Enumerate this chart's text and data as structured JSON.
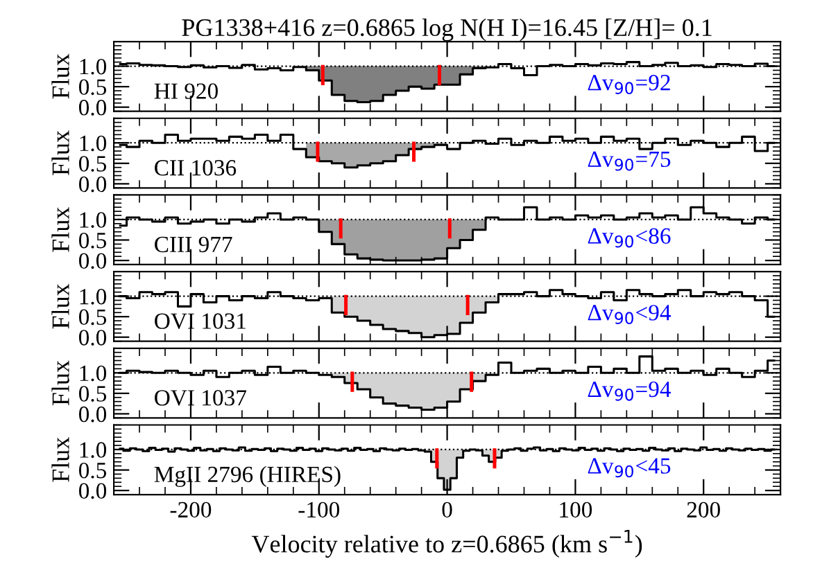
{
  "chart_data": [
    {
      "type": "step",
      "title": "PG1338+416 z=0.6865 log N(H I)=16.45 [Z/H]= 0.1",
      "ylabel": "Flux",
      "xlim": [
        -260,
        260
      ],
      "xticks": [
        -200,
        -100,
        0,
        100,
        200
      ],
      "ylim": [
        -0.1,
        1.6
      ],
      "yticks": [
        {
          "value": 0,
          "label": "0.0"
        },
        {
          "value": 0.5,
          "label": "0.5"
        },
        {
          "value": 1,
          "label": "1.0"
        }
      ],
      "tick_labels": "y",
      "grid": false,
      "series": [
        {
          "color": "#000000",
          "x": [
            -255,
            -245,
            -235,
            -225,
            -215,
            -205,
            -195,
            -185,
            -175,
            -165,
            -155,
            -145,
            -135,
            -125,
            -115,
            -105,
            -95,
            -85,
            -75,
            -65,
            -55,
            -45,
            -35,
            -25,
            -15,
            -5,
            5,
            15,
            25,
            35,
            45,
            55,
            65,
            75,
            85,
            95,
            105,
            115,
            125,
            135,
            145,
            155,
            165,
            175,
            185,
            195,
            205,
            215,
            225,
            235,
            245,
            255
          ],
          "values": [
            1.05,
            1.07,
            1.03,
            1.02,
            1.0,
            0.98,
            1.02,
            0.97,
            1.0,
            0.96,
            1.03,
            0.92,
            0.95,
            0.9,
            0.98,
            0.9,
            0.65,
            0.3,
            0.15,
            0.12,
            0.15,
            0.3,
            0.4,
            0.5,
            0.45,
            0.55,
            0.55,
            0.8,
            0.95,
            0.97,
            1.05,
            0.95,
            0.78,
            1.0,
            1.03,
            1.0,
            1.05,
            1.02,
            1.07,
            1.05,
            1.1,
            1.0,
            1.03,
            1.08,
            1.0,
            1.02,
            0.98,
            1.05,
            1.03,
            1.0,
            1.06,
            1.0
          ]
        },
        {
          "type": "area",
          "color": "#808080",
          "x": [
            -110,
            -110,
            -100,
            -100,
            -90,
            -90,
            -80,
            -80,
            -70,
            -70,
            -60,
            -60,
            -50,
            -50,
            -40,
            -40,
            -30,
            -30,
            -20,
            -20,
            -10,
            -10,
            0,
            0,
            10,
            10,
            20,
            20,
            30,
            30
          ],
          "values": [
            1,
            0.9,
            0.9,
            0.65,
            0.65,
            0.3,
            0.3,
            0.15,
            0.15,
            0.12,
            0.12,
            0.15,
            0.15,
            0.3,
            0.3,
            0.4,
            0.4,
            0.5,
            0.5,
            0.45,
            0.45,
            0.55,
            0.55,
            0.55,
            0.55,
            0.8,
            0.8,
            0.95,
            0.95,
            1
          ]
        }
      ],
      "ref_lines": [
        {
          "axis": "y",
          "value": 1,
          "line_style": "dotted",
          "color": "#000000"
        },
        {
          "axis": "x",
          "value": -97,
          "color": "#ff0000"
        },
        {
          "axis": "x",
          "value": -6,
          "color": "#ff0000"
        }
      ],
      "annotations": [
        "HI 920",
        "Δv$_{90}$=92"
      ]
    },
    {
      "type": "step",
      "ylabel": "Flux",
      "xlim": [
        -260,
        260
      ],
      "xticks": [
        -200,
        -100,
        0,
        100,
        200
      ],
      "ylim": [
        -0.1,
        1.6
      ],
      "yticks": [
        {
          "value": 0,
          "label": "0.0"
        },
        {
          "value": 0.5,
          "label": "0.5"
        },
        {
          "value": 1,
          "label": "1.0"
        }
      ],
      "tick_labels": "y",
      "grid": false,
      "series": [
        {
          "color": "#000000",
          "x": [
            -255,
            -245,
            -235,
            -225,
            -215,
            -205,
            -195,
            -185,
            -175,
            -165,
            -155,
            -145,
            -135,
            -125,
            -115,
            -105,
            -95,
            -85,
            -75,
            -65,
            -55,
            -45,
            -35,
            -25,
            -15,
            -5,
            5,
            15,
            25,
            35,
            45,
            55,
            65,
            75,
            85,
            95,
            105,
            115,
            125,
            135,
            145,
            155,
            165,
            175,
            185,
            195,
            205,
            215,
            225,
            235,
            245,
            255
          ],
          "values": [
            0.95,
            0.9,
            1.05,
            1.0,
            1.2,
            1.05,
            1.1,
            1.1,
            1.05,
            1.15,
            1.1,
            1.2,
            1.05,
            1.2,
            0.85,
            0.65,
            0.55,
            0.5,
            0.4,
            0.45,
            0.5,
            0.55,
            0.7,
            0.85,
            0.9,
            0.95,
            0.85,
            1.0,
            1.05,
            0.98,
            1.1,
            0.95,
            1.05,
            1.0,
            1.15,
            1.05,
            1.1,
            1.0,
            1.15,
            1.05,
            1.1,
            0.85,
            1.0,
            1.1,
            0.95,
            1.05,
            1.0,
            0.9,
            1.0,
            1.15,
            0.8,
            1.0
          ]
        },
        {
          "type": "area",
          "color": "#a8a8a8",
          "x": [
            -110,
            -110,
            -100,
            -100,
            -90,
            -90,
            -80,
            -80,
            -70,
            -70,
            -60,
            -60,
            -50,
            -50,
            -40,
            -40,
            -30,
            -30,
            -20,
            -20,
            -10,
            -10,
            0,
            0
          ],
          "values": [
            1,
            0.65,
            0.65,
            0.55,
            0.55,
            0.5,
            0.5,
            0.4,
            0.4,
            0.45,
            0.45,
            0.5,
            0.5,
            0.55,
            0.55,
            0.7,
            0.7,
            0.85,
            0.85,
            0.9,
            0.9,
            0.95,
            0.95,
            1
          ]
        }
      ],
      "ref_lines": [
        {
          "axis": "y",
          "value": 1,
          "line_style": "dotted",
          "color": "#000000"
        },
        {
          "axis": "x",
          "value": -101,
          "color": "#ff0000"
        },
        {
          "axis": "x",
          "value": -26,
          "color": "#ff0000"
        }
      ],
      "annotations": [
        "CII 1036",
        "Δv$_{90}$=75"
      ]
    },
    {
      "type": "step",
      "ylabel": "Flux",
      "xlim": [
        -260,
        260
      ],
      "xticks": [
        -200,
        -100,
        0,
        100,
        200
      ],
      "ylim": [
        -0.1,
        1.6
      ],
      "yticks": [
        {
          "value": 0,
          "label": "0.0"
        },
        {
          "value": 0.5,
          "label": "0.5"
        },
        {
          "value": 1,
          "label": "1.0"
        }
      ],
      "tick_labels": "y",
      "grid": false,
      "series": [
        {
          "color": "#000000",
          "x": [
            -255,
            -245,
            -235,
            -225,
            -215,
            -205,
            -195,
            -185,
            -175,
            -165,
            -155,
            -145,
            -135,
            -125,
            -115,
            -105,
            -95,
            -85,
            -75,
            -65,
            -55,
            -45,
            -35,
            -25,
            -15,
            -5,
            5,
            15,
            25,
            35,
            45,
            55,
            65,
            75,
            85,
            95,
            105,
            115,
            125,
            135,
            145,
            155,
            165,
            175,
            185,
            195,
            205,
            215,
            225,
            235,
            245,
            255
          ],
          "values": [
            0.85,
            1.05,
            1.0,
            0.95,
            1.05,
            0.9,
            0.95,
            1.0,
            0.9,
            1.0,
            0.95,
            1.05,
            1.15,
            1.0,
            1.05,
            1.0,
            0.7,
            0.4,
            0.15,
            0.05,
            0.02,
            0.0,
            0.0,
            0.0,
            0.02,
            0.05,
            0.3,
            0.5,
            0.75,
            1.05,
            1.0,
            1.0,
            1.3,
            1.0,
            1.05,
            1.0,
            1.1,
            1.05,
            1.1,
            1.0,
            1.05,
            1.15,
            1.05,
            1.1,
            1.0,
            1.3,
            1.15,
            1.05,
            1.0,
            0.9,
            1.05,
            1.0
          ]
        },
        {
          "type": "area",
          "color": "#a0a0a0",
          "x": [
            -100,
            -100,
            -90,
            -90,
            -80,
            -80,
            -70,
            -70,
            -60,
            -60,
            -50,
            -50,
            -40,
            -40,
            -30,
            -30,
            -20,
            -20,
            -10,
            -10,
            0,
            0,
            10,
            10,
            20,
            20,
            30,
            30
          ],
          "values": [
            1,
            0.7,
            0.7,
            0.4,
            0.4,
            0.15,
            0.15,
            0.05,
            0.05,
            0.02,
            0.02,
            0,
            0,
            0,
            0,
            0,
            0,
            0.02,
            0.02,
            0.05,
            0.05,
            0.3,
            0.3,
            0.5,
            0.5,
            0.75,
            0.75,
            1
          ]
        }
      ],
      "ref_lines": [
        {
          "axis": "y",
          "value": 1,
          "line_style": "dotted",
          "color": "#000000"
        },
        {
          "axis": "x",
          "value": -83,
          "color": "#ff0000"
        },
        {
          "axis": "x",
          "value": 2,
          "color": "#ff0000"
        }
      ],
      "annotations": [
        "CIII 977",
        "Δv$_{90}$<86"
      ]
    },
    {
      "type": "step",
      "ylabel": "Flux",
      "xlim": [
        -260,
        260
      ],
      "xticks": [
        -200,
        -100,
        0,
        100,
        200
      ],
      "ylim": [
        -0.1,
        1.6
      ],
      "yticks": [
        {
          "value": 0,
          "label": "0.0"
        },
        {
          "value": 0.5,
          "label": "0.5"
        },
        {
          "value": 1,
          "label": "1.0"
        }
      ],
      "tick_labels": "y",
      "grid": false,
      "series": [
        {
          "color": "#000000",
          "x": [
            -255,
            -245,
            -235,
            -225,
            -215,
            -205,
            -195,
            -185,
            -175,
            -165,
            -155,
            -145,
            -135,
            -125,
            -115,
            -105,
            -95,
            -85,
            -75,
            -65,
            -55,
            -45,
            -35,
            -25,
            -15,
            -5,
            5,
            15,
            25,
            35,
            45,
            55,
            65,
            75,
            85,
            95,
            105,
            115,
            125,
            135,
            145,
            155,
            165,
            175,
            185,
            195,
            205,
            215,
            225,
            235,
            245,
            255
          ],
          "values": [
            1.0,
            0.95,
            1.1,
            1.05,
            1.1,
            0.75,
            1.05,
            0.85,
            1.0,
            0.9,
            1.0,
            0.95,
            1.1,
            1.0,
            0.95,
            0.9,
            0.95,
            0.6,
            0.5,
            0.4,
            0.3,
            0.2,
            0.15,
            0.1,
            0.0,
            0.05,
            0.08,
            0.35,
            0.6,
            0.85,
            1.05,
            1.05,
            1.1,
            1.0,
            1.15,
            1.05,
            1.0,
            0.95,
            1.1,
            0.9,
            1.15,
            1.05,
            1.0,
            1.05,
            1.15,
            1.0,
            1.1,
            1.05,
            1.1,
            1.0,
            0.9,
            0.5
          ]
        },
        {
          "type": "area",
          "color": "#d3d3d3",
          "x": [
            -100,
            -100,
            -90,
            -90,
            -80,
            -80,
            -70,
            -70,
            -60,
            -60,
            -50,
            -50,
            -40,
            -40,
            -30,
            -30,
            -20,
            -20,
            -10,
            -10,
            0,
            0,
            10,
            10,
            20,
            20,
            30,
            30,
            40,
            40
          ],
          "values": [
            1,
            0.95,
            0.95,
            0.6,
            0.6,
            0.5,
            0.5,
            0.4,
            0.4,
            0.3,
            0.3,
            0.2,
            0.2,
            0.15,
            0.15,
            0.1,
            0.1,
            0,
            0,
            0.05,
            0.05,
            0.08,
            0.08,
            0.35,
            0.35,
            0.6,
            0.6,
            0.85,
            0.85,
            1
          ]
        }
      ],
      "ref_lines": [
        {
          "axis": "y",
          "value": 1,
          "line_style": "dotted",
          "color": "#000000"
        },
        {
          "axis": "x",
          "value": -79,
          "color": "#ff0000"
        },
        {
          "axis": "x",
          "value": 16,
          "color": "#ff0000"
        }
      ],
      "annotations": [
        "OVI 1031",
        "Δv$_{90}$<94"
      ]
    },
    {
      "type": "step",
      "ylabel": "Flux",
      "xlim": [
        -260,
        260
      ],
      "xticks": [
        -200,
        -100,
        0,
        100,
        200
      ],
      "ylim": [
        -0.1,
        1.6
      ],
      "yticks": [
        {
          "value": 0,
          "label": "0.0"
        },
        {
          "value": 0.5,
          "label": "0.5"
        },
        {
          "value": 1,
          "label": "1.0"
        }
      ],
      "tick_labels": "y",
      "grid": false,
      "series": [
        {
          "color": "#000000",
          "x": [
            -255,
            -245,
            -235,
            -225,
            -215,
            -205,
            -195,
            -185,
            -175,
            -165,
            -155,
            -145,
            -135,
            -125,
            -115,
            -105,
            -95,
            -85,
            -75,
            -65,
            -55,
            -45,
            -35,
            -25,
            -15,
            -5,
            5,
            15,
            25,
            35,
            45,
            55,
            65,
            75,
            85,
            95,
            105,
            115,
            125,
            135,
            145,
            155,
            165,
            175,
            185,
            195,
            205,
            215,
            225,
            235,
            245,
            255
          ],
          "values": [
            1.0,
            1.05,
            1.02,
            1.0,
            1.05,
            1.0,
            0.95,
            1.05,
            0.9,
            1.0,
            1.05,
            0.95,
            1.15,
            1.0,
            1.05,
            1.0,
            0.95,
            0.9,
            0.75,
            0.6,
            0.4,
            0.25,
            0.2,
            0.15,
            0.1,
            0.15,
            0.3,
            0.6,
            0.8,
            0.95,
            1.25,
            1.0,
            1.05,
            1.1,
            1.0,
            1.05,
            1.0,
            1.15,
            1.0,
            1.1,
            1.0,
            1.4,
            1.05,
            1.1,
            1.0,
            1.05,
            0.95,
            1.1,
            1.0,
            0.9,
            1.05,
            1.3
          ]
        },
        {
          "type": "area",
          "color": "#d3d3d3",
          "x": [
            -90,
            -90,
            -80,
            -80,
            -70,
            -70,
            -60,
            -60,
            -50,
            -50,
            -40,
            -40,
            -30,
            -30,
            -20,
            -20,
            -10,
            -10,
            0,
            0,
            10,
            10,
            20,
            20,
            30,
            30,
            40,
            40
          ],
          "values": [
            1,
            0.9,
            0.9,
            0.75,
            0.75,
            0.6,
            0.6,
            0.4,
            0.4,
            0.25,
            0.25,
            0.2,
            0.2,
            0.15,
            0.15,
            0.1,
            0.1,
            0.15,
            0.15,
            0.3,
            0.3,
            0.6,
            0.6,
            0.8,
            0.8,
            0.95,
            0.95,
            1
          ]
        }
      ],
      "ref_lines": [
        {
          "axis": "y",
          "value": 1,
          "line_style": "dotted",
          "color": "#000000"
        },
        {
          "axis": "x",
          "value": -74,
          "color": "#ff0000"
        },
        {
          "axis": "x",
          "value": 19,
          "color": "#ff0000"
        }
      ],
      "annotations": [
        "OVI 1037",
        "Δv$_{90}$=94"
      ]
    },
    {
      "type": "step",
      "ylabel": "Flux",
      "xlabel": "Velocity relative to z=0.6865 (km s$^{−1}$)",
      "xlim": [
        -260,
        260
      ],
      "xticks": [
        -200,
        -100,
        0,
        100,
        200
      ],
      "ylim": [
        -0.1,
        1.6
      ],
      "yticks": [
        {
          "value": 0,
          "label": "0.0"
        },
        {
          "value": 0.5,
          "label": "0.5"
        },
        {
          "value": 1,
          "label": "1.0"
        }
      ],
      "grid": false,
      "series": [
        {
          "color": "#000000",
          "x": [
            -255,
            -250,
            -245,
            -240,
            -235,
            -230,
            -225,
            -220,
            -215,
            -210,
            -205,
            -200,
            -195,
            -190,
            -185,
            -180,
            -175,
            -170,
            -165,
            -160,
            -155,
            -150,
            -145,
            -140,
            -135,
            -130,
            -125,
            -120,
            -115,
            -110,
            -105,
            -100,
            -95,
            -90,
            -85,
            -80,
            -75,
            -70,
            -65,
            -60,
            -55,
            -50,
            -45,
            -40,
            -35,
            -30,
            -25,
            -20,
            -15,
            -10,
            -5,
            0,
            5,
            10,
            15,
            20,
            25,
            30,
            35,
            40,
            45,
            50,
            55,
            60,
            65,
            70,
            75,
            80,
            85,
            90,
            95,
            100,
            105,
            110,
            115,
            120,
            125,
            130,
            135,
            140,
            145,
            150,
            155,
            160,
            165,
            170,
            175,
            180,
            185,
            190,
            195,
            200,
            205,
            210,
            215,
            220,
            225,
            230,
            235,
            240,
            245,
            250,
            255
          ],
          "values": [
            1.02,
            0.97,
            1.03,
            1.0,
            0.96,
            1.04,
            0.99,
            1.02,
            0.95,
            1.03,
            1.0,
            0.97,
            1.04,
            0.98,
            1.01,
            0.96,
            1.03,
            1.0,
            0.98,
            1.05,
            0.97,
            1.01,
            0.99,
            1.03,
            0.96,
            1.02,
            1.0,
            0.97,
            1.04,
            0.99,
            1.02,
            0.96,
            1.03,
            1.0,
            0.98,
            1.02,
            0.97,
            1.04,
            0.99,
            1.01,
            0.96,
            1.03,
            1.0,
            0.98,
            1.02,
            0.99,
            1.01,
            0.98,
            0.95,
            0.7,
            0.3,
            0.02,
            0.3,
            0.8,
            0.97,
            1.0,
            0.98,
            0.85,
            0.7,
            0.8,
            0.97,
            1.0,
            1.03,
            0.97,
            1.02,
            1.05,
            0.98,
            1.01,
            0.96,
            1.03,
            1.0,
            0.98,
            1.04,
            0.99,
            1.02,
            0.97,
            1.03,
            1.0,
            0.96,
            1.02,
            0.99,
            1.01,
            0.97,
            1.04,
            1.0,
            0.98,
            1.03,
            0.96,
            1.02,
            1.0,
            0.98,
            1.05,
            0.99,
            1.01,
            0.97,
            1.03,
            1.0,
            0.98,
            1.02,
            0.99,
            1.01,
            0.97,
            1.0
          ]
        },
        {
          "type": "area",
          "color": "#d3d3d3",
          "x": [
            -17.5,
            -17.5,
            -12.5,
            -12.5,
            -7.5,
            -7.5,
            -2.5,
            -2.5,
            2.5,
            2.5,
            7.5,
            7.5,
            12.5,
            12.5,
            17.5,
            17.5,
            22.5,
            22.5,
            27.5,
            27.5,
            32.5,
            32.5,
            37.5,
            37.5,
            42.5,
            42.5,
            47.5,
            47.5
          ],
          "values": [
            1,
            0.95,
            0.95,
            0.7,
            0.7,
            0.3,
            0.3,
            0.02,
            0.02,
            0.3,
            0.3,
            0.8,
            0.8,
            0.97,
            0.97,
            1.0,
            1.0,
            0.98,
            0.98,
            0.85,
            0.85,
            0.7,
            0.7,
            0.8,
            0.8,
            0.97,
            0.97,
            1
          ]
        }
      ],
      "ref_lines": [
        {
          "axis": "y",
          "value": 1,
          "line_style": "dotted",
          "color": "#000000"
        },
        {
          "axis": "x",
          "value": -8,
          "color": "#ff0000"
        },
        {
          "axis": "x",
          "value": 37,
          "color": "#ff0000"
        }
      ],
      "annotations": [
        "MgII 2796 (HIRES)",
        "Δv$_{90}$<45"
      ]
    }
  ]
}
